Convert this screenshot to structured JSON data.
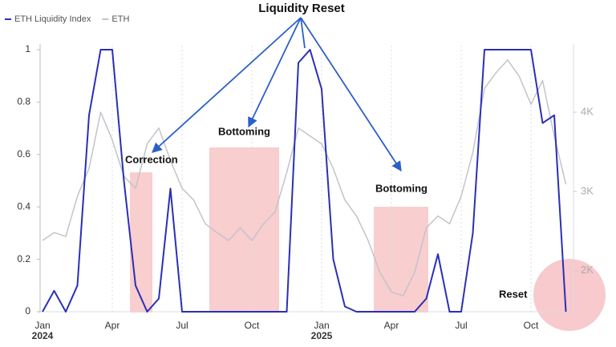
{
  "chart_data": {
    "type": "line",
    "title": "Liquidity Reset",
    "annotations": [
      "Correction",
      "Bottoming",
      "Bottoming",
      "Reset"
    ],
    "categories": [
      "Jan",
      null,
      null,
      null,
      null,
      null,
      "Apr",
      null,
      null,
      null,
      null,
      null,
      "Jul",
      null,
      null,
      null,
      null,
      null,
      "Oct",
      null,
      null,
      null,
      null,
      null,
      "Jan",
      null,
      null,
      null,
      null,
      null,
      "Apr",
      null,
      null,
      null,
      null,
      null,
      "Jul",
      null,
      null,
      null,
      null,
      null,
      "Oct",
      null,
      null,
      null
    ],
    "x_year_labels": [
      "2024",
      "2025"
    ],
    "series": [
      {
        "name": "ETH Liquidity Index",
        "color": "#2b2fb5",
        "axis": "y",
        "values": [
          0.0,
          0.08,
          0.0,
          0.1,
          0.75,
          1,
          1,
          0.5,
          0.1,
          0.0,
          0.05,
          0.47,
          0.0,
          0,
          0,
          0,
          0,
          0,
          0,
          0,
          0,
          0.0,
          0.95,
          1,
          0.85,
          0.2,
          0.02,
          0,
          0,
          0,
          0,
          0,
          0,
          0.05,
          0.22,
          0.0,
          0,
          0.3,
          1,
          1,
          1,
          1,
          1,
          0.72,
          0.75,
          0.0
        ]
      },
      {
        "name": "ETH",
        "color": "#c3c3cc",
        "axis": "y2",
        "values": [
          2380,
          2480,
          2430,
          2940,
          3290,
          4000,
          3650,
          3190,
          3040,
          3600,
          3800,
          3390,
          3040,
          2890,
          2590,
          2480,
          2380,
          2540,
          2380,
          2590,
          2740,
          3240,
          3800,
          3700,
          3600,
          3290,
          2890,
          2690,
          2380,
          1980,
          1730,
          1680,
          1980,
          2540,
          2690,
          2590,
          2940,
          3490,
          4300,
          4500,
          4660,
          4450,
          4100,
          4400,
          3700,
          3090
        ]
      }
    ],
    "ylim": [
      0,
      1
    ],
    "yticks": [
      0,
      0.2,
      0.4,
      0.6,
      0.8,
      1
    ],
    "y2lim": [
      1480,
      4790
    ],
    "y2ticks": [
      {
        "value": 2000,
        "label": "2K"
      },
      {
        "value": 3000,
        "label": "3K"
      },
      {
        "value": 4000,
        "label": "4K"
      }
    ],
    "grid": true
  }
}
